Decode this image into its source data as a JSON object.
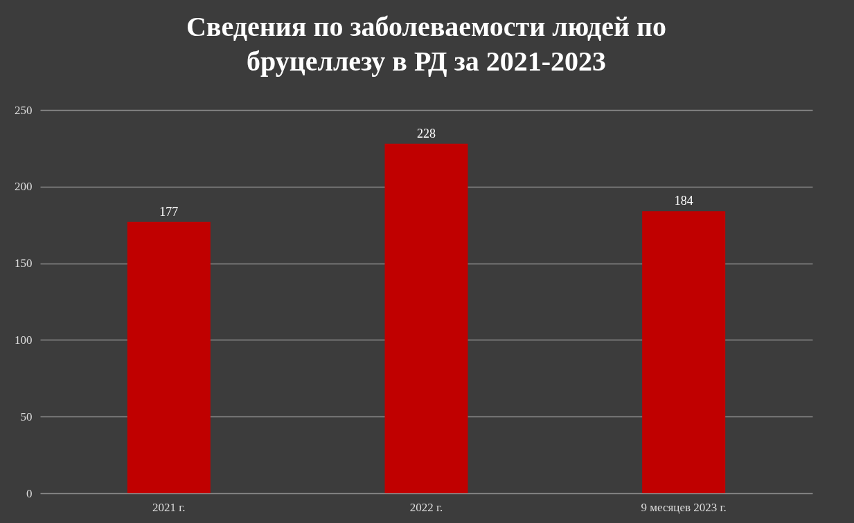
{
  "chart_data": {
    "type": "bar",
    "title": "Сведения по заболеваемости людей по бруцеллезу в РД за 2021-2023",
    "categories": [
      "2021 г.",
      "2022 г.",
      "9 месяцев 2023 г."
    ],
    "values": [
      177,
      228,
      184
    ],
    "color": "#c00000",
    "ylim": [
      0,
      250
    ],
    "yticks": [
      0,
      50,
      100,
      150,
      200,
      250
    ],
    "grid": "y",
    "data_labels": true
  }
}
